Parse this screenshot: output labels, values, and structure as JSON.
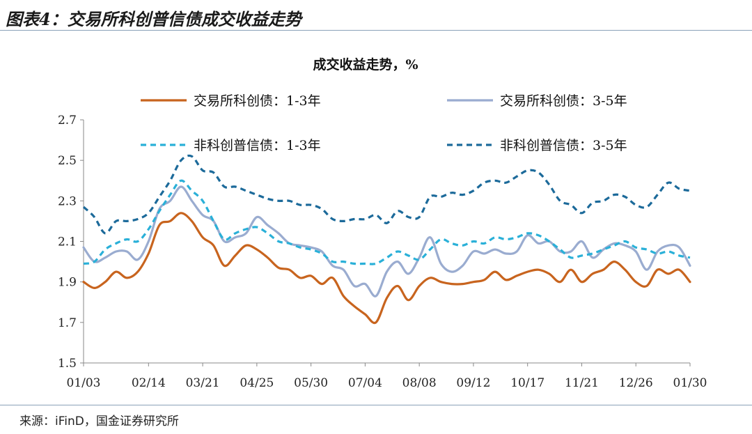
{
  "figure": {
    "title": "图表4：交易所科创普信债成交收益走势",
    "source": "来源：iFinD，国金证券研究所"
  },
  "colors": {
    "series1": "#c8641e",
    "series2": "#9aacd0",
    "series3": "#2ab0d8",
    "series4": "#1c6a9a"
  },
  "chart_data": {
    "type": "line",
    "title": "成交收益走势，%",
    "xlabel": "",
    "ylabel": "",
    "ylim": [
      1.5,
      2.7
    ],
    "yticks": [
      "1.5",
      "1.7",
      "1.9",
      "2.1",
      "2.3",
      "2.5",
      "2.7"
    ],
    "xticks": [
      "01/03",
      "02/14",
      "03/21",
      "04/25",
      "05/30",
      "07/04",
      "08/08",
      "09/12",
      "10/17",
      "11/21",
      "12/26",
      "01/30"
    ],
    "legend_placement": "top",
    "grid": false,
    "x": [
      "01/03",
      "01/10",
      "01/17",
      "01/24",
      "01/31",
      "02/07",
      "02/14",
      "02/21",
      "02/28",
      "03/07",
      "03/14",
      "03/21",
      "03/28",
      "04/04",
      "04/11",
      "04/18",
      "04/25",
      "05/02",
      "05/09",
      "05/16",
      "05/23",
      "05/30",
      "06/06",
      "06/13",
      "06/20",
      "06/27",
      "07/04",
      "07/11",
      "07/18",
      "07/25",
      "08/01",
      "08/08",
      "08/15",
      "08/22",
      "08/29",
      "09/05",
      "09/12",
      "09/19",
      "09/26",
      "10/03",
      "10/10",
      "10/17",
      "10/24",
      "10/31",
      "11/07",
      "11/14",
      "11/21",
      "11/28",
      "12/05",
      "12/12",
      "12/19",
      "12/26",
      "01/02",
      "01/09",
      "01/16",
      "01/23",
      "01/30"
    ],
    "series": [
      {
        "name": "交易所科创债：1-3年",
        "values": [
          1.9,
          1.87,
          1.9,
          1.95,
          1.92,
          1.95,
          2.04,
          2.18,
          2.2,
          2.24,
          2.2,
          2.12,
          2.08,
          1.98,
          2.03,
          2.08,
          2.06,
          2.02,
          1.97,
          1.96,
          1.92,
          1.93,
          1.89,
          1.92,
          1.83,
          1.78,
          1.74,
          1.7,
          1.82,
          1.88,
          1.81,
          1.88,
          1.92,
          1.9,
          1.89,
          1.89,
          1.9,
          1.91,
          1.95,
          1.91,
          1.93,
          1.95,
          1.96,
          1.94,
          1.9,
          1.96,
          1.9,
          1.94,
          1.96,
          2.0,
          1.96,
          1.9,
          1.88,
          1.96,
          1.94,
          1.96,
          1.9
        ]
      },
      {
        "name": "交易所科创债：3-5年",
        "values": [
          2.07,
          2.0,
          2.02,
          2.05,
          2.05,
          2.01,
          2.1,
          2.26,
          2.3,
          2.37,
          2.3,
          2.23,
          2.2,
          2.1,
          2.12,
          2.14,
          2.22,
          2.18,
          2.14,
          2.09,
          2.08,
          2.07,
          2.05,
          1.98,
          1.96,
          1.88,
          1.89,
          1.83,
          1.95,
          2.0,
          1.94,
          2.02,
          2.12,
          1.99,
          1.95,
          1.98,
          2.05,
          2.04,
          2.06,
          2.04,
          2.05,
          2.13,
          2.09,
          2.1,
          2.05,
          2.05,
          2.1,
          2.02,
          2.06,
          2.09,
          2.08,
          2.05,
          1.96,
          2.05,
          2.08,
          2.07,
          1.98
        ]
      },
      {
        "name": "非科创普信债：1-3年",
        "values": [
          1.99,
          2.0,
          2.06,
          2.09,
          2.11,
          2.1,
          2.16,
          2.25,
          2.33,
          2.4,
          2.35,
          2.3,
          2.2,
          2.11,
          2.14,
          2.16,
          2.17,
          2.14,
          2.1,
          2.09,
          2.07,
          2.06,
          2.04,
          2.0,
          2.0,
          1.99,
          1.99,
          1.99,
          2.02,
          2.05,
          2.03,
          2.01,
          2.06,
          2.11,
          2.09,
          2.08,
          2.1,
          2.09,
          2.12,
          2.11,
          2.12,
          2.14,
          2.13,
          2.1,
          2.06,
          2.02,
          2.03,
          2.04,
          2.06,
          2.08,
          2.1,
          2.07,
          2.06,
          2.04,
          2.05,
          2.03,
          2.02
        ]
      },
      {
        "name": "非科创普信债：3-5年",
        "values": [
          2.27,
          2.22,
          2.14,
          2.2,
          2.2,
          2.21,
          2.24,
          2.32,
          2.4,
          2.5,
          2.52,
          2.45,
          2.44,
          2.37,
          2.37,
          2.35,
          2.33,
          2.31,
          2.3,
          2.3,
          2.28,
          2.28,
          2.26,
          2.21,
          2.2,
          2.21,
          2.21,
          2.23,
          2.19,
          2.25,
          2.22,
          2.22,
          2.32,
          2.32,
          2.34,
          2.33,
          2.35,
          2.39,
          2.4,
          2.39,
          2.42,
          2.45,
          2.44,
          2.38,
          2.3,
          2.28,
          2.24,
          2.29,
          2.3,
          2.33,
          2.32,
          2.28,
          2.27,
          2.33,
          2.39,
          2.36,
          2.35
        ]
      }
    ]
  }
}
